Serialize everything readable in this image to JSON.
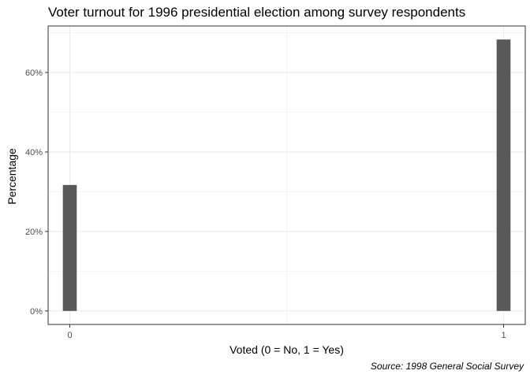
{
  "chart_data": {
    "type": "bar",
    "title": "Voter turnout for 1996 presidential election among survey respondents",
    "xlabel": "Voted (0 = No, 1 = Yes)",
    "ylabel": "Percentage",
    "caption": "Source: 1998 General Social Survey",
    "x": [
      0,
      1
    ],
    "x_tick_labels": [
      "0",
      "1"
    ],
    "values": [
      0.317,
      0.683
    ],
    "xlim": [
      -0.05,
      1.05
    ],
    "ylim": [
      -0.034,
      0.717
    ],
    "y_ticks": [
      0,
      0.2,
      0.4,
      0.6
    ],
    "y_tick_labels": [
      "0%",
      "20%",
      "40%",
      "60%"
    ],
    "bar_color": "#595959",
    "grid_color": "#ebebeb",
    "grid": true,
    "theme": "bw"
  }
}
